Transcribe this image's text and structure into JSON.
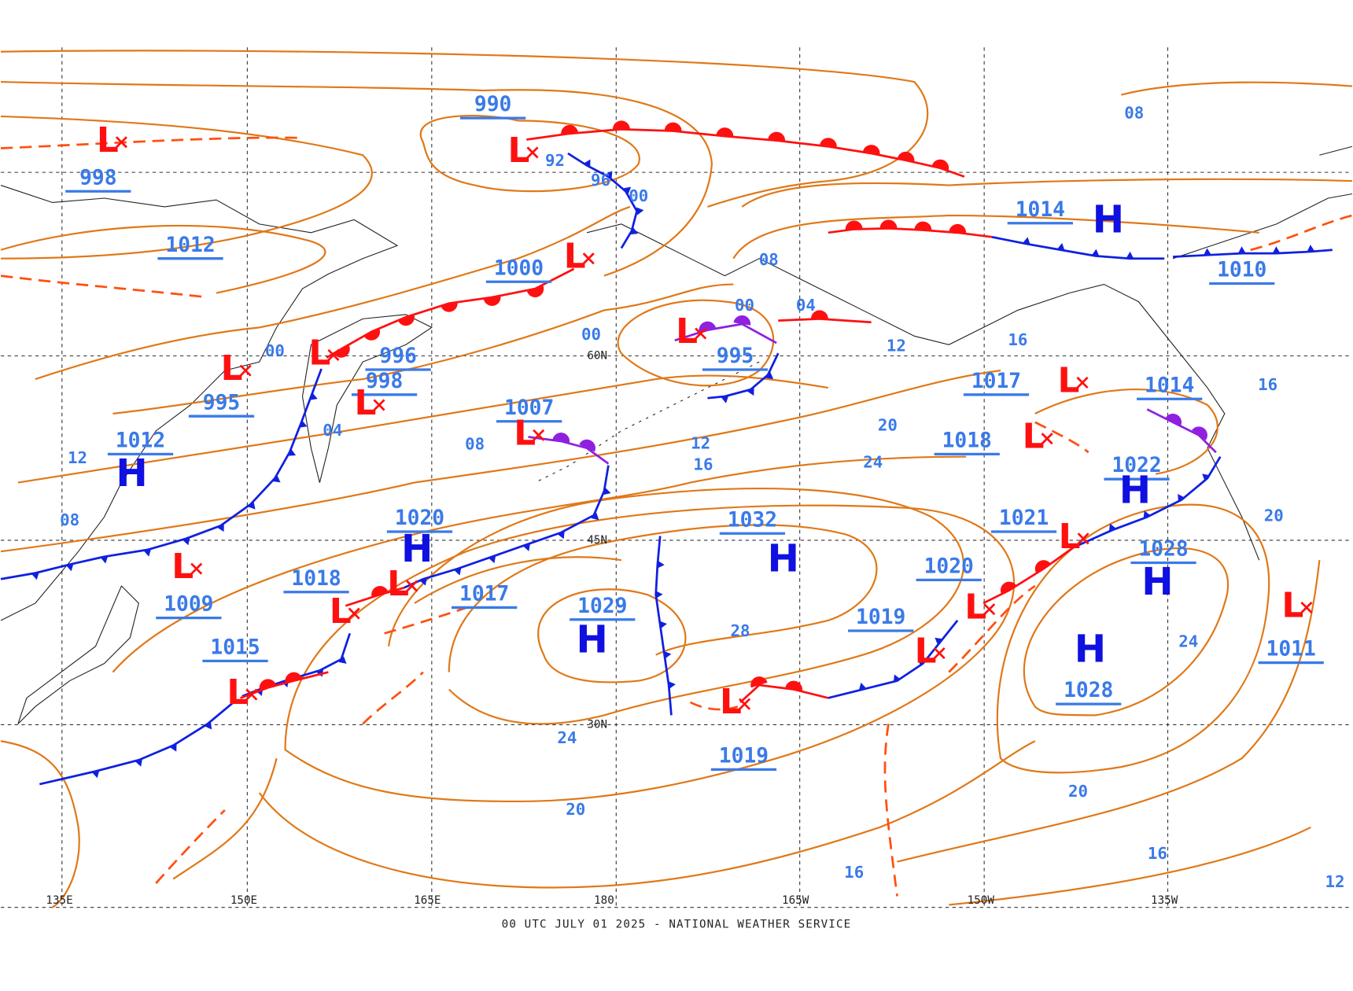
{
  "map": {
    "footer": "00 UTC JULY 01 2025 - NATIONAL WEATHER SERVICE",
    "longitude_labels": [
      "135E",
      "150E",
      "165E",
      "180",
      "165W",
      "150W",
      "135W"
    ],
    "latitude_labels": [
      "60N",
      "45N",
      "30N"
    ],
    "central_pressures": [
      990,
      998,
      1012,
      1000,
      996,
      998,
      995,
      1012,
      1007,
      995,
      1020,
      1018,
      1009,
      1017,
      1015,
      1029,
      1032,
      1019,
      1020,
      1019,
      1021,
      1018,
      1017,
      1014,
      1010,
      1014,
      1022,
      1028,
      1028,
      1011
    ],
    "isobar_labels": [
      "92",
      "96",
      "00",
      "00",
      "04",
      "08",
      "12",
      "08",
      "00",
      "00",
      "04",
      "08",
      "08",
      "12",
      "16",
      "16",
      "20",
      "24",
      "12",
      "16",
      "28",
      "24",
      "20",
      "20",
      "16",
      "16",
      "12",
      "24",
      "20"
    ],
    "highs": [
      "H",
      "H",
      "H",
      "H",
      "H",
      "H",
      "H",
      "H"
    ],
    "lows": [
      "L",
      "L",
      "L",
      "L",
      "L",
      "L",
      "L",
      "L",
      "L",
      "L",
      "L",
      "L",
      "L",
      "L",
      "L",
      "L",
      "L",
      "L",
      "L"
    ]
  }
}
